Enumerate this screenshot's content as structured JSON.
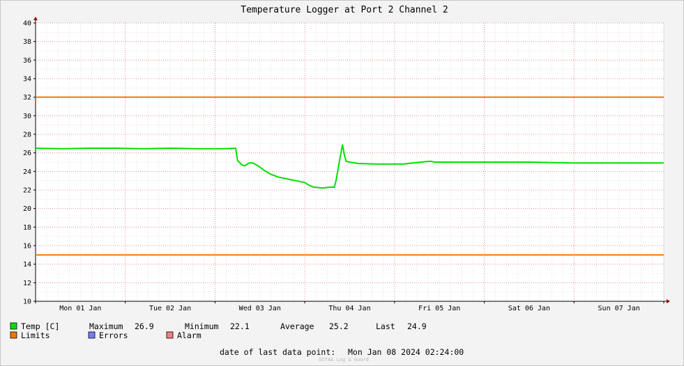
{
  "chart_data": {
    "type": "line",
    "title": "Temperature Logger at Port 2 Channel 2",
    "xlabel": "",
    "ylabel": "",
    "ylim": [
      10,
      40
    ],
    "yticks": [
      10,
      12,
      14,
      16,
      18,
      20,
      22,
      24,
      26,
      28,
      30,
      32,
      34,
      36,
      38,
      40
    ],
    "xlim": [
      0,
      7
    ],
    "x_unit": "days since Mon 01 Jan 00:00",
    "x_tick_labels": [
      "Mon 01 Jan",
      "Tue 02 Jan",
      "Wed 03 Jan",
      "Thu 04 Jan",
      "Fri 05 Jan",
      "Sat 06 Jan",
      "Sun 07 Jan"
    ],
    "grid": true,
    "series": [
      {
        "name": "Temp [C]",
        "color": "#00e000",
        "points": [
          [
            0.0,
            26.5
          ],
          [
            0.3,
            26.45
          ],
          [
            0.6,
            26.5
          ],
          [
            0.9,
            26.5
          ],
          [
            1.2,
            26.45
          ],
          [
            1.5,
            26.5
          ],
          [
            1.8,
            26.45
          ],
          [
            2.1,
            26.45
          ],
          [
            2.23,
            26.5
          ],
          [
            2.25,
            25.2
          ],
          [
            2.3,
            24.7
          ],
          [
            2.33,
            24.6
          ],
          [
            2.38,
            24.9
          ],
          [
            2.42,
            24.9
          ],
          [
            2.48,
            24.6
          ],
          [
            2.55,
            24.1
          ],
          [
            2.62,
            23.7
          ],
          [
            2.7,
            23.4
          ],
          [
            2.8,
            23.2
          ],
          [
            2.9,
            23.0
          ],
          [
            3.0,
            22.8
          ],
          [
            3.05,
            22.5
          ],
          [
            3.1,
            22.3
          ],
          [
            3.2,
            22.2
          ],
          [
            3.28,
            22.3
          ],
          [
            3.33,
            22.3
          ],
          [
            3.35,
            23.1
          ],
          [
            3.38,
            24.8
          ],
          [
            3.4,
            25.8
          ],
          [
            3.42,
            26.9
          ],
          [
            3.44,
            25.8
          ],
          [
            3.46,
            25.1
          ],
          [
            3.5,
            25.0
          ],
          [
            3.6,
            24.85
          ],
          [
            3.8,
            24.8
          ],
          [
            4.0,
            24.8
          ],
          [
            4.1,
            24.8
          ],
          [
            4.2,
            24.9
          ],
          [
            4.3,
            25.0
          ],
          [
            4.35,
            25.05
          ],
          [
            4.4,
            25.1
          ],
          [
            4.45,
            25.0
          ],
          [
            4.6,
            25.0
          ],
          [
            5.0,
            25.0
          ],
          [
            5.5,
            25.0
          ],
          [
            5.8,
            24.95
          ],
          [
            6.0,
            24.9
          ],
          [
            6.5,
            24.9
          ],
          [
            7.0,
            24.9
          ]
        ]
      },
      {
        "name": "Limits",
        "color": "#f07800",
        "values": [
          32,
          15
        ]
      }
    ],
    "legend": {
      "temp_label": "Temp [C]",
      "maximum_label": "Maximum",
      "maximum": "26.9",
      "minimum_label": "Minimum",
      "minimum": "22.1",
      "average_label": "Average",
      "average": "25.2",
      "last_label": "Last",
      "last": "24.9",
      "limits_label": "Limits",
      "errors_label": "Errors",
      "alarm_label": "Alarm",
      "temp_color": "#00e000",
      "limits_color": "#f07800",
      "errors_color": "#7a7aff",
      "alarm_color": "#f08080"
    },
    "footer": {
      "label": "date of last data point:",
      "value": "Mon Jan 08 2024 02:24:00"
    },
    "watermark": "OCTAA Log & Guard"
  }
}
